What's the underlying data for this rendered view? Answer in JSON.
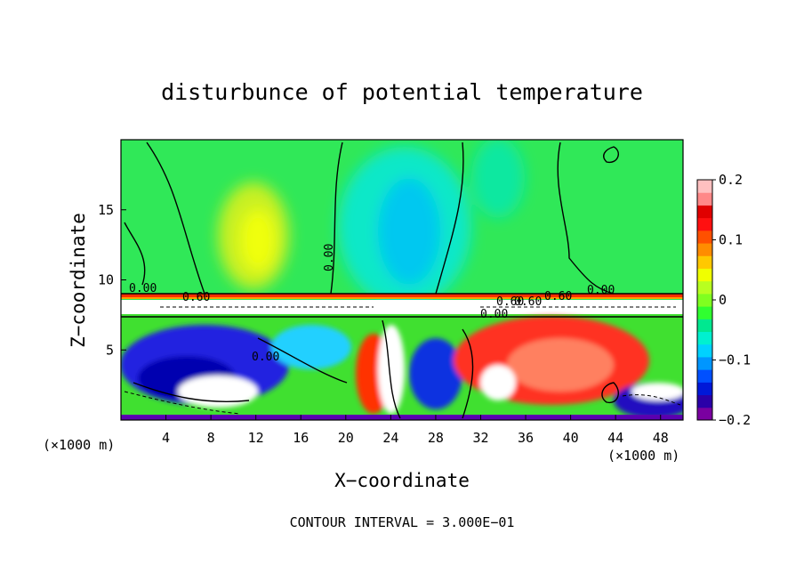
{
  "chart_data": {
    "type": "heatmap",
    "title": "disturbunce of potential temperature",
    "xlabel": "X−coordinate",
    "ylabel": "Z−coordinate",
    "x_unit_left": "(×1000 m)",
    "x_unit_right": "(×1000 m)",
    "xlim": [
      0,
      50
    ],
    "ylim": [
      0,
      20
    ],
    "x_ticks": [
      4,
      8,
      12,
      16,
      20,
      24,
      28,
      32,
      36,
      40,
      44,
      48
    ],
    "x_tick_labels": [
      "4",
      "8",
      "12",
      "16",
      "20",
      "24",
      "28",
      "32",
      "36",
      "40",
      "44",
      "48"
    ],
    "y_ticks": [
      5,
      10,
      15
    ],
    "y_tick_labels": [
      "5",
      "10",
      "15"
    ],
    "colorbar": {
      "min": -0.2,
      "max": 0.2,
      "ticks": [
        0.2,
        0.1,
        0,
        -0.1,
        -0.2
      ],
      "tick_labels": [
        "0.2",
        "0.1",
        "0",
        "−0.1",
        "−0.2"
      ],
      "colors": [
        "#7a00a0",
        "#2a00a8",
        "#0018d8",
        "#0050ff",
        "#0096ff",
        "#00d2ff",
        "#00f0d0",
        "#00e890",
        "#30ff30",
        "#80ff20",
        "#b8ff20",
        "#f0ff00",
        "#ffc800",
        "#ff8c00",
        "#ff5000",
        "#ff1010",
        "#e00000",
        "#ff8888",
        "#ffc0c0"
      ]
    },
    "contour_labels": [
      "0.00",
      "0.60",
      "0.00",
      "0.00",
      "0.60",
      "0.60",
      "0.00",
      "0.60",
      "0.00"
    ],
    "footer": "CONTOUR INTERVAL = 3.000E−01",
    "regions": [
      {
        "name": "upper-layer",
        "x0": 0,
        "x1": 50,
        "z0": 9,
        "z1": 20,
        "value": 0.02
      },
      {
        "name": "warm-anomaly-upper",
        "cx": 12,
        "cz": 14,
        "rx": 4,
        "rz": 4,
        "value": 0.1
      },
      {
        "name": "cool-anomaly-upper",
        "cx": 25,
        "cz": 14,
        "rx": 5,
        "rz": 5,
        "value": -0.09
      },
      {
        "name": "interface-band",
        "x0": 0,
        "x1": 50,
        "z0": 7.5,
        "z1": 9,
        "value": 0.2
      },
      {
        "name": "lower-cold-left",
        "cx": 8,
        "cz": 4,
        "rx": 8,
        "rz": 3,
        "value": -0.15
      },
      {
        "name": "lower-warm-right",
        "cx": 38,
        "cz": 4.5,
        "rx": 8,
        "rz": 3,
        "value": 0.15
      }
    ]
  }
}
